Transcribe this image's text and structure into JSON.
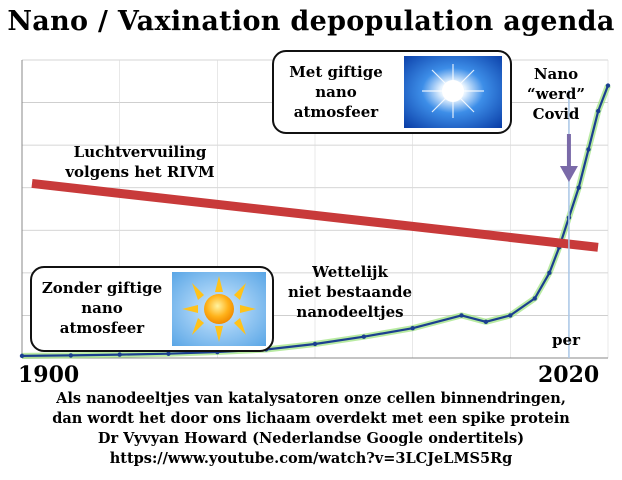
{
  "title": "Nano / Vaxination depopulation agenda",
  "labels": {
    "pollution": [
      "Luchtvervuiling",
      "volgens het RIVM"
    ],
    "nano_covid": [
      "Nano",
      "“werd”",
      "Covid"
    ],
    "legal": [
      "Wettelijk",
      "niet bestaande",
      "nanodeeltjes"
    ],
    "per": "per"
  },
  "boxes": {
    "with_toxic": [
      "Met giftige",
      "nano",
      "atmosfeer"
    ],
    "without_toxic": [
      "Zonder giftige",
      "nano",
      "atmosfeer"
    ]
  },
  "years": {
    "start": "1900",
    "end": "2020"
  },
  "footer": {
    "line1": "Als nanodeeltjes van katalysatoren onze cellen binnendringen,",
    "line2": "dan wordt het door ons lichaam overdekt met een spike protein",
    "line3": "Dr Vyvyan Howard (Nederlandse Google ondertitels)",
    "line4": "https://www.youtube.com/watch?v=3LCJeLMS5Rg"
  },
  "colors": {
    "curve": "#1b3f8f",
    "curve_glow": "#9be27a",
    "trend": "#c83a3a",
    "arrow": "#7a6aa8",
    "marker_line": "#a9c6e6",
    "sky_blue": "#2a7de1"
  },
  "chart_data": {
    "type": "line",
    "xlim": [
      1900,
      2020
    ],
    "ylim": [
      0,
      7
    ],
    "grid": true,
    "series": [
      {
        "x": [
          1900,
          1910,
          1920,
          1930,
          1940,
          1950,
          1960,
          1970,
          1980,
          1990,
          1995,
          2000,
          2005,
          2008,
          2010,
          2012,
          2014,
          2016,
          2018,
          2020
        ],
        "values": [
          0.05,
          0.06,
          0.08,
          0.1,
          0.14,
          0.2,
          0.33,
          0.5,
          0.7,
          1.0,
          0.85,
          1.0,
          1.4,
          2.0,
          2.6,
          3.3,
          4.0,
          4.9,
          5.8,
          6.4
        ]
      }
    ],
    "trend_line": {
      "x": [
        1900,
        2020
      ],
      "y": [
        4.1,
        2.6
      ]
    },
    "marker_year": 2012
  }
}
